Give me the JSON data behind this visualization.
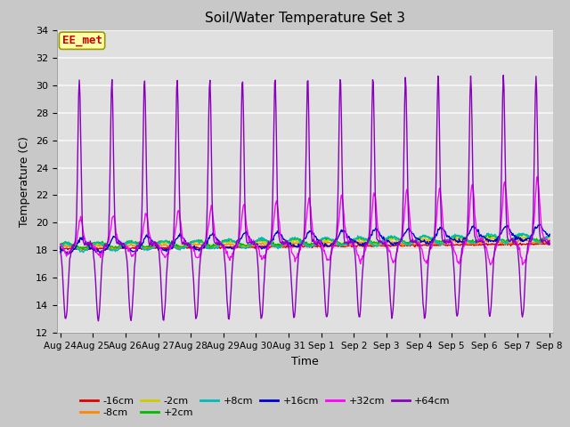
{
  "title": "Soil/Water Temperature Set 3",
  "xlabel": "Time",
  "ylabel": "Temperature (C)",
  "ylim": [
    12,
    34
  ],
  "yticks": [
    12,
    14,
    16,
    18,
    20,
    22,
    24,
    26,
    28,
    30,
    32,
    34
  ],
  "date_labels": [
    "Aug 24",
    "Aug 25",
    "Aug 26",
    "Aug 27",
    "Aug 28",
    "Aug 29",
    "Aug 30",
    "Aug 31",
    "Sep 1",
    "Sep 2",
    "Sep 3",
    "Sep 4",
    "Sep 5",
    "Sep 6",
    "Sep 7",
    "Sep 8"
  ],
  "colors": {
    "-16cm": "#dd0000",
    "-8cm": "#ff8800",
    "-2cm": "#cccc00",
    "+2cm": "#00bb00",
    "+8cm": "#00bbbb",
    "+16cm": "#0000cc",
    "+32cm": "#ff00ff",
    "+64cm": "#8800bb"
  },
  "annotation_text": "EE_met",
  "annotation_color": "#cc0000",
  "annotation_bg": "#ffffaa",
  "annotation_edge": "#999900",
  "fig_bg": "#c8c8c8",
  "plot_bg": "#e0e0e0",
  "grid_color": "#f8f8f8",
  "title_fontsize": 11,
  "axis_fontsize": 9,
  "tick_fontsize": 8,
  "legend_fontsize": 8
}
